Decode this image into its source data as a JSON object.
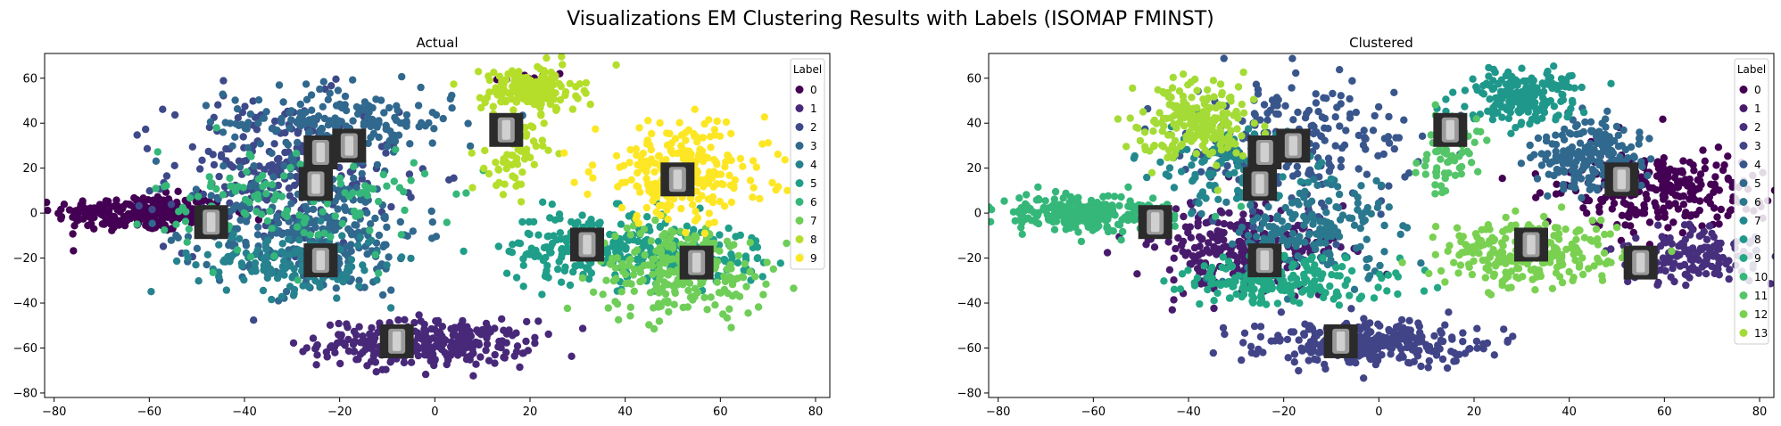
{
  "suptitle": "Visualizations EM Clustering Results with Labels (ISOMAP FMINST)",
  "chart_data": [
    {
      "type": "scatter",
      "title": "Actual",
      "xlabel": "",
      "ylabel": "",
      "xlim": [
        -82,
        83
      ],
      "ylim": [
        -82,
        71
      ],
      "xticks": [
        -80,
        -60,
        -40,
        -20,
        0,
        20,
        40,
        60,
        80
      ],
      "yticks": [
        -80,
        -60,
        -40,
        -20,
        0,
        20,
        40,
        60
      ],
      "legend": {
        "title": "Label",
        "placement": "top-right",
        "labels": [
          "0",
          "1",
          "2",
          "3",
          "4",
          "5",
          "6",
          "7",
          "8",
          "9"
        ]
      },
      "colors": [
        "#440154",
        "#482878",
        "#3e4989",
        "#31688e",
        "#26828e",
        "#1f9e89",
        "#35b779",
        "#6ece58",
        "#b5de2b",
        "#fde725"
      ],
      "clusters": [
        {
          "label": "0",
          "cx": -62,
          "cy": 0,
          "sx": 9,
          "sy": 4,
          "n": 260
        },
        {
          "label": "0",
          "cx": 20,
          "cy": 60,
          "sx": 4,
          "sy": 2,
          "n": 12
        },
        {
          "label": "1",
          "cx": -2,
          "cy": -58,
          "sx": 11,
          "sy": 5,
          "n": 320
        },
        {
          "label": "2",
          "cx": -32,
          "cy": 18,
          "sx": 12,
          "sy": 17,
          "n": 260
        },
        {
          "label": "3",
          "cx": -25,
          "cy": -8,
          "sx": 11,
          "sy": 14,
          "n": 300
        },
        {
          "label": "3",
          "cx": -20,
          "cy": 40,
          "sx": 12,
          "sy": 8,
          "n": 200
        },
        {
          "label": "4",
          "cx": -30,
          "cy": -22,
          "sx": 10,
          "sy": 7,
          "n": 160
        },
        {
          "label": "5",
          "cx": 33,
          "cy": -15,
          "sx": 9,
          "sy": 8,
          "n": 220
        },
        {
          "label": "5",
          "cx": 55,
          "cy": -18,
          "sx": 8,
          "sy": 7,
          "n": 120
        },
        {
          "label": "6",
          "cx": -30,
          "cy": 5,
          "sx": 14,
          "sy": 12,
          "n": 140
        },
        {
          "label": "7",
          "cx": 52,
          "cy": -25,
          "sx": 9,
          "sy": 10,
          "n": 260
        },
        {
          "label": "8",
          "cx": 20,
          "cy": 55,
          "sx": 5,
          "sy": 5,
          "n": 180
        },
        {
          "label": "8",
          "cx": 17,
          "cy": 25,
          "sx": 3,
          "sy": 8,
          "n": 60
        },
        {
          "label": "9",
          "cx": 52,
          "cy": 18,
          "sx": 9,
          "sy": 11,
          "n": 260
        }
      ],
      "thumbnails": [
        [
          -24,
          27
        ],
        [
          -18,
          30
        ],
        [
          15,
          37
        ],
        [
          -25,
          13
        ],
        [
          -47,
          -4
        ],
        [
          -24,
          -21
        ],
        [
          51,
          15
        ],
        [
          32,
          -14
        ],
        [
          55,
          -22
        ],
        [
          -8,
          -57
        ]
      ]
    },
    {
      "type": "scatter",
      "title": "Clustered",
      "xlabel": "",
      "ylabel": "",
      "xlim": [
        -82,
        83
      ],
      "ylim": [
        -82,
        71
      ],
      "xticks": [
        -80,
        -60,
        -40,
        -20,
        0,
        20,
        40,
        60,
        80
      ],
      "yticks": [
        -80,
        -60,
        -40,
        -20,
        0,
        20,
        40,
        60
      ],
      "legend": {
        "title": "Label",
        "placement": "top-right",
        "labels": [
          "0",
          "1",
          "2",
          "3",
          "4",
          "5",
          "6",
          "7",
          "8",
          "9",
          "10",
          "11",
          "12",
          "13"
        ]
      },
      "colors": [
        "#440154",
        "#481a6c",
        "#472f7d",
        "#414487",
        "#39568c",
        "#31688e",
        "#2a788e",
        "#23888e",
        "#1f988b",
        "#22a884",
        "#35b779",
        "#54c568",
        "#7ad151",
        "#a5db36"
      ],
      "clusters": [
        {
          "label": "0",
          "cx": 58,
          "cy": 10,
          "sx": 10,
          "sy": 9,
          "n": 260
        },
        {
          "label": "1",
          "cx": -30,
          "cy": -15,
          "sx": 11,
          "sy": 10,
          "n": 260
        },
        {
          "label": "2",
          "cx": 65,
          "cy": -20,
          "sx": 8,
          "sy": 6,
          "n": 160
        },
        {
          "label": "3",
          "cx": -2,
          "cy": -58,
          "sx": 11,
          "sy": 5,
          "n": 320
        },
        {
          "label": "4",
          "cx": -18,
          "cy": 30,
          "sx": 12,
          "sy": 14,
          "n": 240
        },
        {
          "label": "5",
          "cx": 45,
          "cy": 25,
          "sx": 6,
          "sy": 8,
          "n": 200
        },
        {
          "label": "6",
          "cx": -15,
          "cy": -8,
          "sx": 10,
          "sy": 12,
          "n": 180
        },
        {
          "label": "7",
          "cx": -30,
          "cy": 20,
          "sx": 8,
          "sy": 8,
          "n": 120
        },
        {
          "label": "8",
          "cx": 30,
          "cy": 52,
          "sx": 6,
          "sy": 6,
          "n": 200
        },
        {
          "label": "9",
          "cx": -20,
          "cy": -30,
          "sx": 12,
          "sy": 5,
          "n": 180
        },
        {
          "label": "10",
          "cx": -62,
          "cy": 0,
          "sx": 9,
          "sy": 4,
          "n": 260
        },
        {
          "label": "11",
          "cx": 15,
          "cy": 25,
          "sx": 3,
          "sy": 8,
          "n": 60
        },
        {
          "label": "12",
          "cx": 32,
          "cy": -18,
          "sx": 10,
          "sy": 8,
          "n": 260
        },
        {
          "label": "13",
          "cx": -38,
          "cy": 40,
          "sx": 6,
          "sy": 9,
          "n": 220
        }
      ],
      "thumbnails": [
        [
          -24,
          27
        ],
        [
          -18,
          30
        ],
        [
          15,
          37
        ],
        [
          -25,
          13
        ],
        [
          -47,
          -4
        ],
        [
          -24,
          -21
        ],
        [
          51,
          15
        ],
        [
          32,
          -14
        ],
        [
          55,
          -22
        ],
        [
          -8,
          -57
        ]
      ]
    }
  ]
}
